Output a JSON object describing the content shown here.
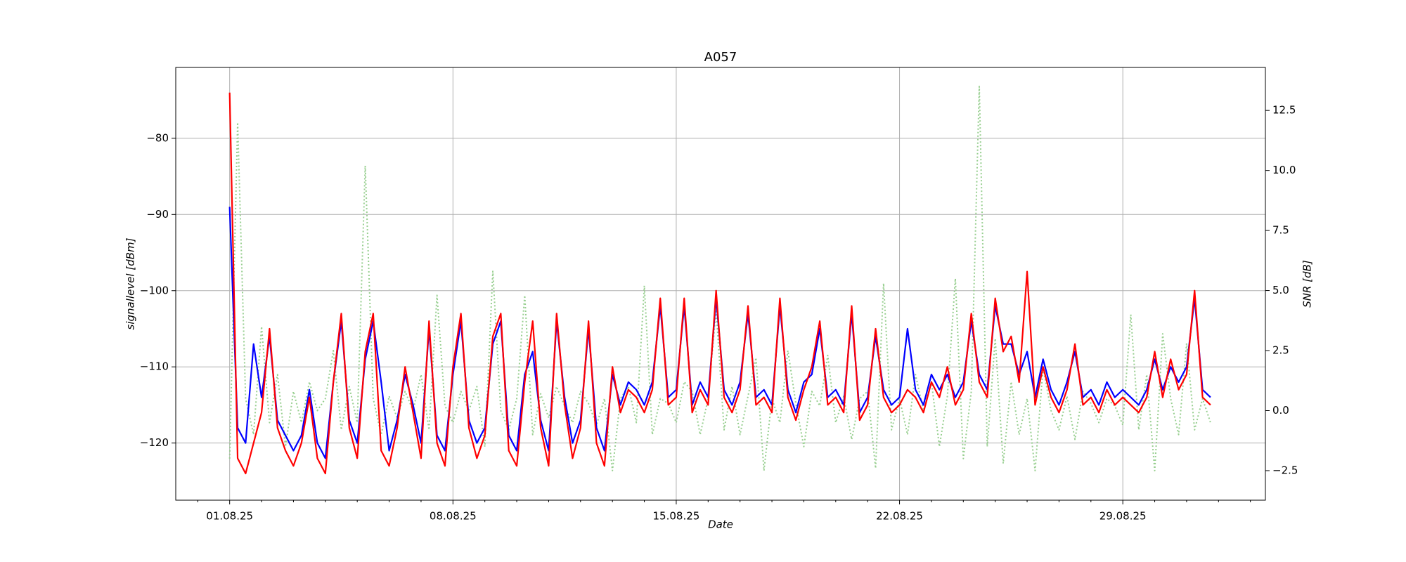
{
  "chart_data": {
    "type": "line",
    "title": "A057",
    "x_label": "Date",
    "y_label": "signallevel [dBm]",
    "y2_label": "SNR [dB]",
    "grid": true,
    "xlim": [
      -1.69,
      32.47
    ],
    "xticks": [
      {
        "value": 0,
        "label": "01.08.25"
      },
      {
        "value": 7,
        "label": "08.08.25"
      },
      {
        "value": 14,
        "label": "15.08.25"
      },
      {
        "value": 21,
        "label": "22.08.25"
      },
      {
        "value": 28,
        "label": "29.08.25"
      }
    ],
    "xminorticks": [
      -1,
      1,
      2,
      3,
      4,
      5,
      6,
      8,
      9,
      10,
      11,
      12,
      13,
      15,
      16,
      17,
      18,
      19,
      20,
      22,
      23,
      24,
      25,
      26,
      27,
      29,
      30,
      31,
      32
    ],
    "ylim": [
      -127.5,
      -70.7
    ],
    "yticks": [
      {
        "value": -120,
        "label": "−120"
      },
      {
        "value": -110,
        "label": "−110"
      },
      {
        "value": -100,
        "label": "−100"
      },
      {
        "value": -90,
        "label": "−90"
      },
      {
        "value": -80,
        "label": "−80"
      }
    ],
    "y2lim": [
      -3.73,
      14.29
    ],
    "y2ticks": [
      {
        "value": -2.5,
        "label": "−2.5"
      },
      {
        "value": 0,
        "label": "0.0"
      },
      2.5,
      {
        "value": 5,
        "label": "5.0"
      },
      7.5,
      {
        "value": 10,
        "label": "10.0"
      },
      12.5
    ],
    "x": [
      0,
      0.25,
      0.5,
      0.75,
      1,
      1.25,
      1.5,
      1.75,
      2,
      2.25,
      2.5,
      2.75,
      3,
      3.25,
      3.5,
      3.75,
      4,
      4.25,
      4.5,
      4.75,
      5,
      5.25,
      5.5,
      5.75,
      6,
      6.25,
      6.5,
      6.75,
      7,
      7.25,
      7.5,
      7.75,
      8,
      8.25,
      8.5,
      8.75,
      9,
      9.25,
      9.5,
      9.75,
      10,
      10.25,
      10.5,
      10.75,
      11,
      11.25,
      11.5,
      11.75,
      12,
      12.25,
      12.5,
      12.75,
      13,
      13.25,
      13.5,
      13.75,
      14,
      14.25,
      14.5,
      14.75,
      15,
      15.25,
      15.5,
      15.75,
      16,
      16.25,
      16.5,
      16.75,
      17,
      17.25,
      17.5,
      17.75,
      18,
      18.25,
      18.5,
      18.75,
      19,
      19.25,
      19.5,
      19.75,
      20,
      20.25,
      20.5,
      20.75,
      21,
      21.25,
      21.5,
      21.75,
      22,
      22.25,
      22.5,
      22.75,
      23,
      23.25,
      23.5,
      23.75,
      24,
      24.25,
      24.5,
      24.75,
      25,
      25.25,
      25.5,
      25.75,
      26,
      26.25,
      26.5,
      26.75,
      27,
      27.25,
      27.5,
      27.75,
      28,
      28.25,
      28.5,
      28.75,
      29,
      29.25,
      29.5,
      29.75,
      30,
      30.25,
      30.5,
      30.75
    ],
    "series": [
      {
        "color": "#98cf90",
        "axis": "y2",
        "dashed": true,
        "values": [
          -2,
          12,
          0.5,
          -1,
          3.5,
          -0.5,
          1.5,
          -1.5,
          0.8,
          -0.5,
          1.2,
          0,
          0.5,
          2.5,
          -0.8,
          1,
          -0.5,
          10.2,
          0.5,
          -1,
          0.6,
          -0.3,
          0.8,
          0,
          1.5,
          -0.8,
          4.8,
          0.2,
          -0.5,
          0.8,
          0,
          1,
          -1.5,
          5.8,
          0,
          -0.8,
          0.5,
          4.8,
          -1,
          0.7,
          -0.3,
          1,
          0.2,
          -0.5,
          0.8,
          0.3,
          -0.6,
          0.5,
          -2.5,
          0.5,
          1,
          -0.5,
          5.2,
          -1,
          0.5,
          0.3,
          -0.5,
          1.2,
          0.8,
          -1,
          0.5,
          4.2,
          -0.8,
          1,
          -1,
          0.6,
          2.2,
          -2.5,
          0.5,
          -0.5,
          2.5,
          0.3,
          -1.5,
          0.8,
          0.2,
          2.3,
          -0.5,
          0.6,
          -1.2,
          0.5,
          0.8,
          -2.4,
          5.3,
          -0.8,
          0.5,
          -1,
          1.5,
          0,
          1.2,
          -1.5,
          0.6,
          5.5,
          -2,
          0.8,
          13.5,
          -1.5,
          3,
          -2.2,
          1.2,
          -1,
          0.5,
          -2.5,
          1.8,
          0,
          -0.8,
          0.6,
          -1.2,
          0.8,
          0.3,
          -0.5,
          0.5,
          0.2,
          -0.6,
          4,
          -0.8,
          1.5,
          -2.5,
          3.2,
          0.5,
          -1,
          2.8,
          -0.8,
          0.5,
          -0.5
        ]
      },
      {
        "color": "#0000ff",
        "values": [
          -89,
          -118,
          -120,
          -107,
          -114,
          -106,
          -117,
          -119,
          -121,
          -119,
          -113,
          -120,
          -122,
          -112,
          -104,
          -117,
          -120,
          -109,
          -104,
          -112,
          -121,
          -117,
          -111,
          -115,
          -120,
          -105,
          -119,
          -121,
          -111,
          -104,
          -117,
          -120,
          -118,
          -107,
          -104,
          -119,
          -121,
          -111,
          -108,
          -117,
          -121,
          -104,
          -114,
          -120,
          -117,
          -105,
          -118,
          -121,
          -111,
          -115,
          -112,
          -113,
          -115,
          -112,
          -102,
          -114,
          -113,
          -102,
          -115,
          -112,
          -114,
          -101,
          -113,
          -115,
          -112,
          -103,
          -114,
          -113,
          -115,
          -102,
          -113,
          -116,
          -112,
          -111,
          -105,
          -114,
          -113,
          -115,
          -103,
          -116,
          -114,
          -106,
          -113,
          -115,
          -114,
          -105,
          -113,
          -115,
          -111,
          -113,
          -111,
          -114,
          -112,
          -104,
          -111,
          -113,
          -102,
          -107,
          -107,
          -111,
          -108,
          -114,
          -109,
          -113,
          -115,
          -112,
          -108,
          -114,
          -113,
          -115,
          -112,
          -114,
          -113,
          -114,
          -115,
          -113,
          -109,
          -113,
          -110,
          -112,
          -110,
          -101,
          -113,
          -114
        ]
      },
      {
        "color": "#ff0000",
        "values": [
          -74,
          -122,
          -124,
          -120,
          -116,
          -105,
          -118,
          -121,
          -123,
          -120,
          -114,
          -122,
          -124,
          -112,
          -103,
          -118,
          -122,
          -108,
          -103,
          -121,
          -123,
          -118,
          -110,
          -116,
          -122,
          -104,
          -120,
          -123,
          -110,
          -103,
          -118,
          -122,
          -119,
          -106,
          -103,
          -121,
          -123,
          -112,
          -104,
          -118,
          -123,
          -103,
          -115,
          -122,
          -118,
          -104,
          -120,
          -123,
          -110,
          -116,
          -113,
          -114,
          -116,
          -113,
          -101,
          -115,
          -114,
          -101,
          -116,
          -113,
          -115,
          -100,
          -114,
          -116,
          -113,
          -102,
          -115,
          -114,
          -116,
          -101,
          -114,
          -117,
          -113,
          -110,
          -104,
          -115,
          -114,
          -116,
          -102,
          -117,
          -115,
          -105,
          -114,
          -116,
          -115,
          -113,
          -114,
          -116,
          -112,
          -114,
          -110,
          -115,
          -113,
          -103,
          -112,
          -114,
          -101,
          -108,
          -106,
          -112,
          -97.5,
          -115,
          -110,
          -114,
          -116,
          -113,
          -107,
          -115,
          -114,
          -116,
          -113,
          -115,
          -114,
          -115,
          -116,
          -114,
          -108,
          -114,
          -109,
          -113,
          -111,
          -100,
          -114,
          -115
        ]
      }
    ]
  }
}
